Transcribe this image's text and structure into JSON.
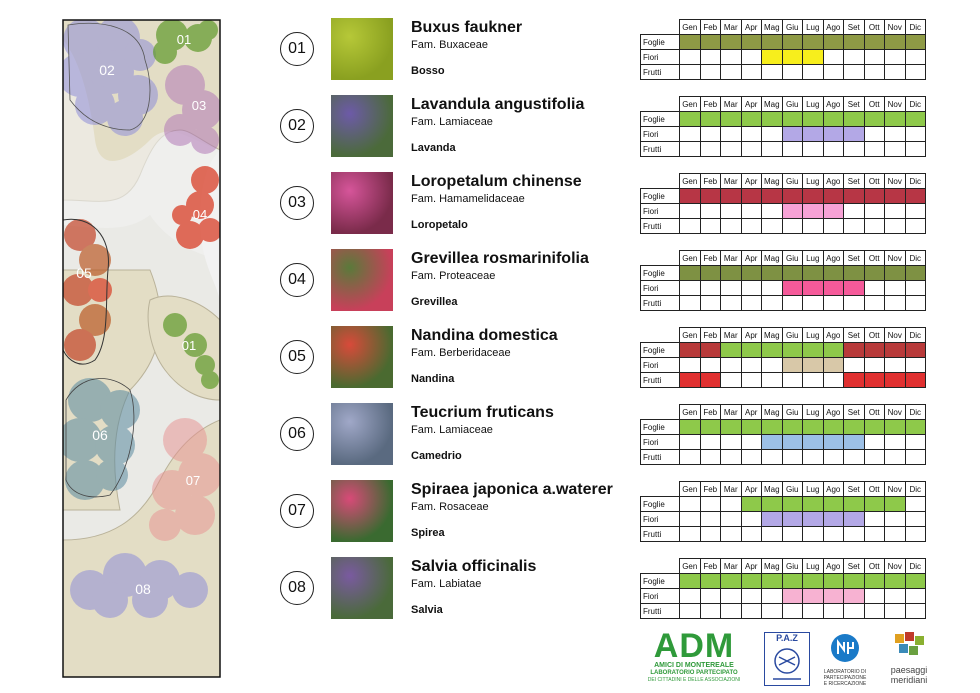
{
  "months": [
    "Gen",
    "Feb",
    "Mar",
    "Apr",
    "Mag",
    "Giu",
    "Lug",
    "Ago",
    "Set",
    "Ott",
    "Nov",
    "Dic"
  ],
  "row_labels": [
    "Foglie",
    "Fiori",
    "Frutti"
  ],
  "plan_labels": [
    "01",
    "02",
    "03",
    "04",
    "05",
    "01",
    "06",
    "07",
    "08"
  ],
  "plants": [
    {
      "num": "01",
      "name": "Buxus faukner",
      "family": "Fam. Buxaceae",
      "common": "Bosso",
      "photo": [
        "#b6c838",
        "#8aa020"
      ],
      "rows": [
        {
          "color": "#8e9a45",
          "on": [
            1,
            2,
            3,
            4,
            5,
            6,
            7,
            8,
            9,
            10,
            11,
            12
          ]
        },
        {
          "color": "#f7ee1c",
          "on": [
            5,
            6,
            7
          ]
        },
        {
          "color": "",
          "on": []
        }
      ]
    },
    {
      "num": "02",
      "name": "Lavandula angustifolia",
      "family": "Fam. Lamiaceae",
      "common": "Lavanda",
      "photo": [
        "#6d5aa8",
        "#4b6a3a"
      ],
      "rows": [
        {
          "color": "#8ec94a",
          "on": [
            1,
            2,
            3,
            4,
            5,
            6,
            7,
            8,
            9,
            10,
            11,
            12
          ]
        },
        {
          "color": "#b3a8e6",
          "on": [
            6,
            7,
            8,
            9
          ]
        },
        {
          "color": "",
          "on": []
        }
      ]
    },
    {
      "num": "03",
      "name": "Loropetalum chinense",
      "family": "Fam. Hamamelidaceae",
      "common": "Loropetalo",
      "photo": [
        "#d6559a",
        "#7a2b4a"
      ],
      "rows": [
        {
          "color": "#b73645",
          "on": [
            1,
            2,
            3,
            4,
            5,
            6,
            7,
            8,
            9,
            10,
            11,
            12
          ]
        },
        {
          "color": "#f7a2d6",
          "on": [
            6,
            7,
            8
          ]
        },
        {
          "color": "",
          "on": []
        }
      ]
    },
    {
      "num": "04",
      "name": "Grevillea rosmarinifolia",
      "family": "Fam. Proteaceae",
      "common": "Grevillea",
      "photo": [
        "#5a7a3a",
        "#c8405a"
      ],
      "rows": [
        {
          "color": "#7e9143",
          "on": [
            1,
            2,
            3,
            4,
            5,
            6,
            7,
            8,
            9,
            10,
            11,
            12
          ]
        },
        {
          "color": "#f55a9a",
          "on": [
            6,
            7,
            8,
            9
          ]
        },
        {
          "color": "",
          "on": []
        }
      ]
    },
    {
      "num": "05",
      "name": "Nandina domestica",
      "family": "Fam. Berberidaceae",
      "common": "Nandina",
      "photo": [
        "#d84a3a",
        "#4a6a30"
      ],
      "rows": [
        {
          "color": "#8ec94a",
          "colorAlt": "#b83a3a",
          "on": [
            1,
            2,
            3,
            4,
            5,
            6,
            7,
            8,
            9,
            10,
            11,
            12
          ],
          "alt": [
            1,
            2,
            9,
            10,
            11,
            12
          ]
        },
        {
          "color": "#d8c8a8",
          "on": [
            6,
            7,
            8
          ]
        },
        {
          "color": "#e03030",
          "on": [
            1,
            2,
            9,
            10,
            11,
            12
          ]
        }
      ]
    },
    {
      "num": "06",
      "name": "Teucrium fruticans",
      "family": "Fam. Lamiaceae",
      "common": "Camedrio",
      "photo": [
        "#a0a8c8",
        "#5a6a80"
      ],
      "rows": [
        {
          "color": "#8ec94a",
          "on": [
            1,
            2,
            3,
            4,
            5,
            6,
            7,
            8,
            9,
            10,
            11,
            12
          ]
        },
        {
          "color": "#9cc0e6",
          "on": [
            5,
            6,
            7,
            8,
            9
          ]
        },
        {
          "color": "",
          "on": []
        }
      ]
    },
    {
      "num": "07",
      "name": "Spiraea japonica a.waterer",
      "family": "Fam. Rosaceae",
      "common": "Spirea",
      "photo": [
        "#d84a78",
        "#3a6a30"
      ],
      "rows": [
        {
          "color": "#8ec94a",
          "on": [
            4,
            5,
            6,
            7,
            8,
            9,
            10,
            11
          ]
        },
        {
          "color": "#b3a8e6",
          "on": [
            5,
            6,
            7,
            8,
            9
          ]
        },
        {
          "color": "",
          "on": []
        }
      ]
    },
    {
      "num": "08",
      "name": "Salvia officinalis",
      "family": "Fam. Labiatae",
      "common": "Salvia",
      "photo": [
        "#7a5aa0",
        "#4a6a3a"
      ],
      "rows": [
        {
          "color": "#8ec94a",
          "on": [
            1,
            2,
            3,
            4,
            5,
            6,
            7,
            8,
            9,
            10,
            11,
            12
          ]
        },
        {
          "color": "#f7b2d2",
          "on": [
            6,
            7,
            8,
            9
          ]
        },
        {
          "color": "",
          "on": []
        }
      ]
    }
  ],
  "logos": {
    "adm_title": "ADM",
    "adm_sub1": "AMICI DI MONTEREALE",
    "adm_sub2": "LABORATORIO PARTECIPATO",
    "adm_sub3": "DEI CITTADINI E DELLE ASSOCIAZIONI",
    "paz": "P.A.Z",
    "lab_line1": "LABORATORIO DI",
    "lab_line2": "PARTECIPAZIONE",
    "lab_line3": "E RICERCAZIONE",
    "pm_line1": "paesaggi",
    "pm_line2": "meridiani"
  },
  "colors": {
    "adm_green": "#2f9a3a",
    "paz_blue": "#2a4aa0",
    "lab_blue": "#1a7ac8"
  }
}
